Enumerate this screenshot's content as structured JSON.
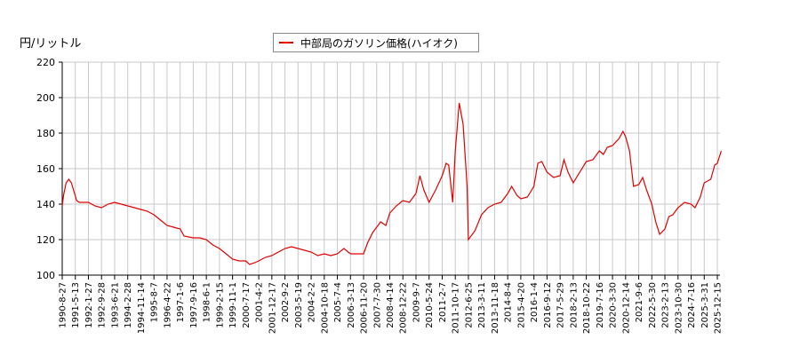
{
  "chart_data": {
    "type": "line",
    "title": "",
    "ylabel": "円/リットル",
    "xlabel": "",
    "ylim": [
      100,
      220
    ],
    "yticks": [
      100,
      120,
      140,
      160,
      180,
      200,
      220
    ],
    "grid": true,
    "legend_position": "top-center",
    "legend": [
      "中部局のガソリン価格(ハイオク)"
    ],
    "line_color": "#e00000",
    "x_tick_labels": [
      "1990-8-27",
      "1991-5-13",
      "1992-1-27",
      "1992-9-28",
      "1993-6-21",
      "1994-2-28",
      "1994-11-14",
      "1995-8-7",
      "1996-4-22",
      "1997-1-6",
      "1997-9-16",
      "1998-6-1",
      "1999-2-15",
      "1999-11-1",
      "2000-7-17",
      "2001-4-2",
      "2001-12-17",
      "2002-9-2",
      "2003-5-19",
      "2004-2-2",
      "2004-10-18",
      "2005-7-4",
      "2006-3-13",
      "2006-11-20",
      "2007-7-30",
      "2008-4-14",
      "2008-12-22",
      "2009-9-7",
      "2010-5-24",
      "2011-2-7",
      "2011-10-17",
      "2012-6-25",
      "2013-3-11",
      "2013-11-18",
      "2014-8-4",
      "2015-4-20",
      "2016-1-4",
      "2016-9-12",
      "2017-5-29",
      "2018-2-13",
      "2018-10-22",
      "2019-7-16",
      "2020-3-30",
      "2020-12-14",
      "2021-9-6",
      "2022-5-30",
      "2023-2-13",
      "2023-10-30",
      "2024-7-16",
      "2025-3-31",
      "2025-12-15"
    ],
    "series": [
      {
        "name": "中部局のガソリン価格(ハイオク)",
        "points": [
          [
            0,
            139
          ],
          [
            0.1,
            145
          ],
          [
            0.3,
            152
          ],
          [
            0.5,
            154
          ],
          [
            0.7,
            152
          ],
          [
            0.9,
            147
          ],
          [
            1.1,
            142
          ],
          [
            1.3,
            141
          ],
          [
            2,
            141
          ],
          [
            2.5,
            139
          ],
          [
            3,
            138
          ],
          [
            3.5,
            140
          ],
          [
            4,
            141
          ],
          [
            4.5,
            140
          ],
          [
            5,
            139
          ],
          [
            5.5,
            138
          ],
          [
            6,
            137
          ],
          [
            6.5,
            136
          ],
          [
            7,
            134
          ],
          [
            7.5,
            131
          ],
          [
            8,
            128
          ],
          [
            8.5,
            127
          ],
          [
            9,
            126
          ],
          [
            9.3,
            122
          ],
          [
            10,
            121
          ],
          [
            10.5,
            121
          ],
          [
            11,
            120
          ],
          [
            11.5,
            117
          ],
          [
            12,
            115
          ],
          [
            12.5,
            112
          ],
          [
            13,
            109
          ],
          [
            13.5,
            108
          ],
          [
            14,
            108
          ],
          [
            14.3,
            106
          ],
          [
            14.7,
            107
          ],
          [
            15,
            108
          ],
          [
            15.5,
            110
          ],
          [
            16,
            111
          ],
          [
            16.5,
            113
          ],
          [
            17,
            115
          ],
          [
            17.5,
            116
          ],
          [
            18,
            115
          ],
          [
            18.5,
            114
          ],
          [
            19,
            113
          ],
          [
            19.5,
            111
          ],
          [
            20,
            112
          ],
          [
            20.5,
            111
          ],
          [
            21,
            112
          ],
          [
            21.5,
            115
          ],
          [
            22,
            112
          ],
          [
            22.5,
            112
          ],
          [
            23,
            112
          ],
          [
            23.3,
            118
          ],
          [
            23.7,
            124
          ],
          [
            24,
            127
          ],
          [
            24.3,
            130
          ],
          [
            24.7,
            128
          ],
          [
            25,
            135
          ],
          [
            25.5,
            139
          ],
          [
            26,
            142
          ],
          [
            26.5,
            141
          ],
          [
            27,
            146
          ],
          [
            27.3,
            156
          ],
          [
            27.6,
            148
          ],
          [
            28,
            141
          ],
          [
            28.5,
            148
          ],
          [
            29,
            156
          ],
          [
            29.3,
            163
          ],
          [
            29.5,
            162
          ],
          [
            29.8,
            141
          ],
          [
            30,
            170
          ],
          [
            30.3,
            197
          ],
          [
            30.6,
            185
          ],
          [
            30.9,
            150
          ],
          [
            31,
            120
          ],
          [
            31.5,
            125
          ],
          [
            32,
            134
          ],
          [
            32.5,
            138
          ],
          [
            33,
            140
          ],
          [
            33.5,
            141
          ],
          [
            34,
            146
          ],
          [
            34.3,
            150
          ],
          [
            34.7,
            145
          ],
          [
            35,
            143
          ],
          [
            35.5,
            144
          ],
          [
            36,
            150
          ],
          [
            36.3,
            163
          ],
          [
            36.6,
            164
          ],
          [
            37,
            158
          ],
          [
            37.5,
            155
          ],
          [
            38,
            156
          ],
          [
            38.3,
            165
          ],
          [
            38.6,
            158
          ],
          [
            39,
            152
          ],
          [
            39.5,
            158
          ],
          [
            40,
            164
          ],
          [
            40.5,
            165
          ],
          [
            41,
            170
          ],
          [
            41.3,
            168
          ],
          [
            41.6,
            172
          ],
          [
            42,
            173
          ],
          [
            42.5,
            177
          ],
          [
            42.8,
            181
          ],
          [
            43,
            178
          ],
          [
            43.3,
            170
          ],
          [
            43.6,
            150
          ],
          [
            44,
            151
          ],
          [
            44.3,
            155
          ],
          [
            44.6,
            148
          ],
          [
            45,
            140
          ],
          [
            45.3,
            130
          ],
          [
            45.6,
            123
          ],
          [
            46,
            126
          ],
          [
            46.3,
            133
          ],
          [
            46.6,
            134
          ],
          [
            47,
            138
          ],
          [
            47.5,
            141
          ],
          [
            48,
            140
          ],
          [
            48.3,
            138
          ],
          [
            48.7,
            144
          ],
          [
            49,
            152
          ],
          [
            49.5,
            154
          ],
          [
            49.8,
            162
          ],
          [
            50,
            163
          ],
          [
            50.3,
            170
          ]
        ]
      }
    ]
  },
  "y_axis_label": "円/リットル",
  "legend_label": "中部局のガソリン価格(ハイオク)"
}
